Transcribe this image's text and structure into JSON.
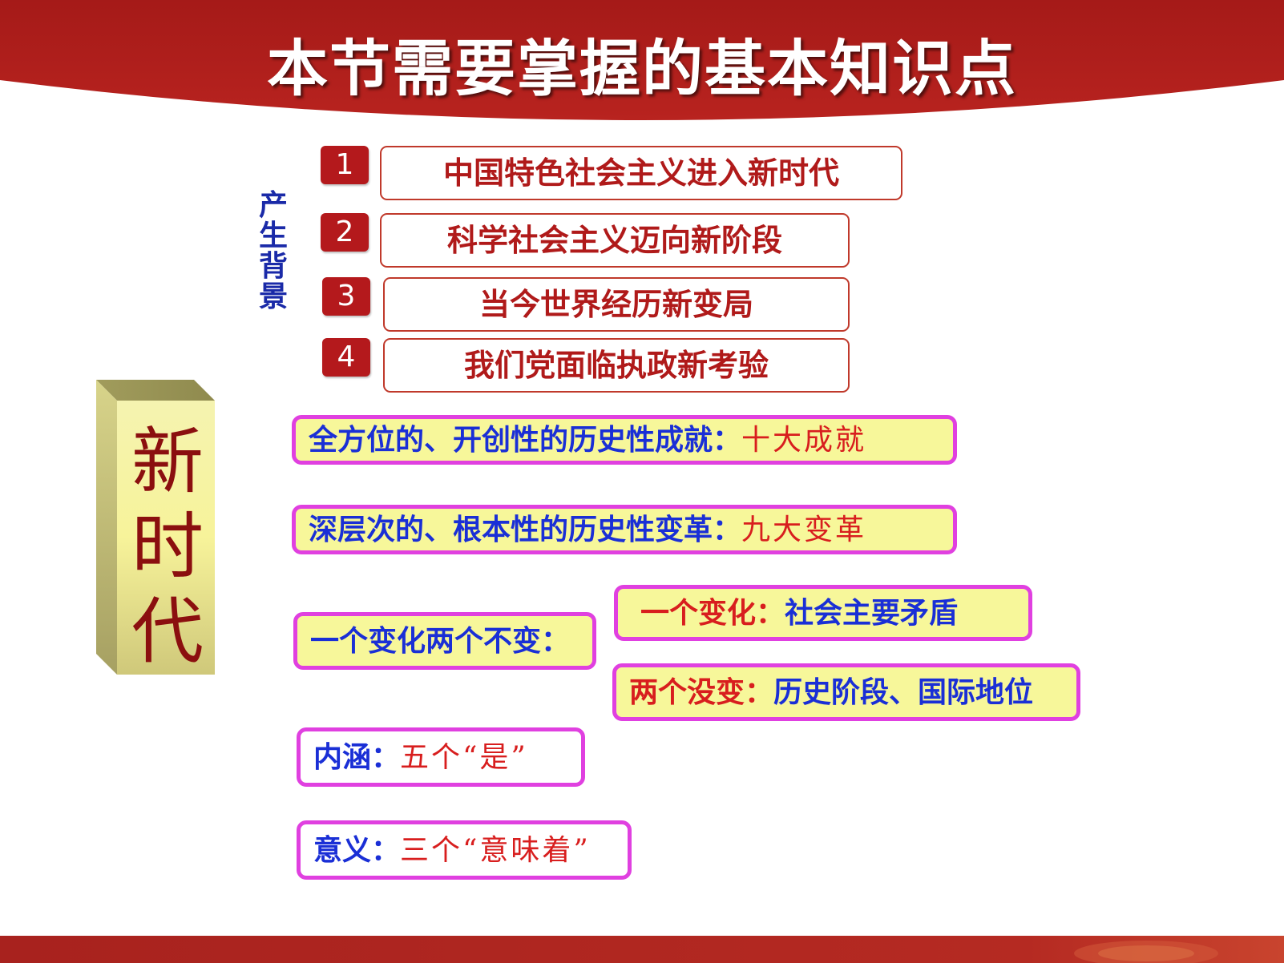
{
  "header": {
    "title": "本节需要掌握的基本知识点"
  },
  "background_label": "产生背景",
  "background_items": [
    {
      "number": "1",
      "text": "中国特色社会主义进入新时代"
    },
    {
      "number": "2",
      "text": "科学社会主义迈向新阶段"
    },
    {
      "number": "3",
      "text": "当今世界经历新变局"
    },
    {
      "number": "4",
      "text": "我们党面临执政新考验"
    }
  ],
  "pillar": {
    "text": "新时代"
  },
  "achievements": {
    "label": "全方位的、开创性的历史性成就：",
    "value": "十大成就"
  },
  "changes": {
    "label": "深层次的、根本性的历史性变革：",
    "value": "九大变革"
  },
  "one_change_two_unchanged": {
    "label": "一个变化两个不变：",
    "one_change": {
      "label": "一个变化：",
      "value": "社会主要矛盾"
    },
    "two_unchanged": {
      "label": "两个没变：",
      "value": "历史阶段、国际地位"
    }
  },
  "connotation": {
    "label": "内涵：",
    "value": "五个“是”"
  },
  "significance": {
    "label": "意义：",
    "value": "三个“意味着”"
  },
  "colors": {
    "header_red": "#b3201e",
    "accent_magenta": "#e040e0",
    "box_yellow": "#f7f79a",
    "text_blue": "#1a2fd6",
    "text_red": "#d81e1e"
  }
}
